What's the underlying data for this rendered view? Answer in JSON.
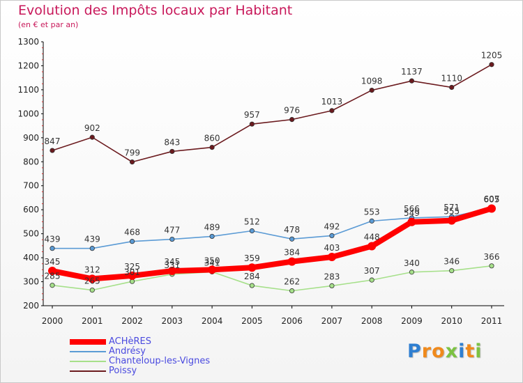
{
  "header": {
    "title": "Evolution des Impôts locaux par Habitant",
    "subtitle": "(en € et par an)"
  },
  "chart_data": {
    "type": "line",
    "title": "Evolution des Impôts locaux par Habitant",
    "subtitle": "(en € et par an)",
    "x": [
      "2000",
      "2001",
      "2002",
      "2003",
      "2004",
      "2005",
      "2006",
      "2007",
      "2008",
      "2009",
      "2010",
      "2011"
    ],
    "ylim": [
      200,
      1300
    ],
    "yticks": [
      200,
      300,
      400,
      500,
      600,
      700,
      800,
      900,
      1000,
      1100,
      1200,
      1300
    ],
    "grid": false,
    "legend_position": "bottom-left",
    "series": [
      {
        "name": "Poissy",
        "color": "#6b1a1e",
        "values": [
          847,
          902,
          799,
          843,
          860,
          957,
          976,
          1013,
          1098,
          1137,
          1110,
          1205
        ]
      },
      {
        "name": "Andrésy",
        "color": "#5b9bd5",
        "values": [
          439,
          439,
          468,
          477,
          489,
          512,
          478,
          492,
          553,
          566,
          571,
          607
        ]
      },
      {
        "name": "Chanteloup-les-Vignes",
        "color": "#a6e08a",
        "values": [
          285,
          265,
          301,
          331,
          341,
          284,
          262,
          283,
          307,
          340,
          346,
          366
        ]
      },
      {
        "name": "ACHèRES",
        "color": "#ff0000",
        "values": [
          345,
          312,
          325,
          345,
          350,
          359,
          384,
          403,
          448,
          549,
          555,
          605
        ]
      }
    ]
  },
  "legend": {
    "items": [
      {
        "name": "ACHèRES",
        "color": "#ff0000"
      },
      {
        "name": "Andrésy",
        "color": "#5b9bd5"
      },
      {
        "name": "Chanteloup-les-Vignes",
        "color": "#a6e08a"
      },
      {
        "name": "Poissy",
        "color": "#6b1a1e"
      }
    ]
  },
  "logo": {
    "text": "Proxiti",
    "letter_colors": [
      "#2f7fd1",
      "#f08a1c",
      "#f08a1c",
      "#7cc242",
      "#2f7fd1",
      "#f08a1c",
      "#7cc242"
    ]
  }
}
